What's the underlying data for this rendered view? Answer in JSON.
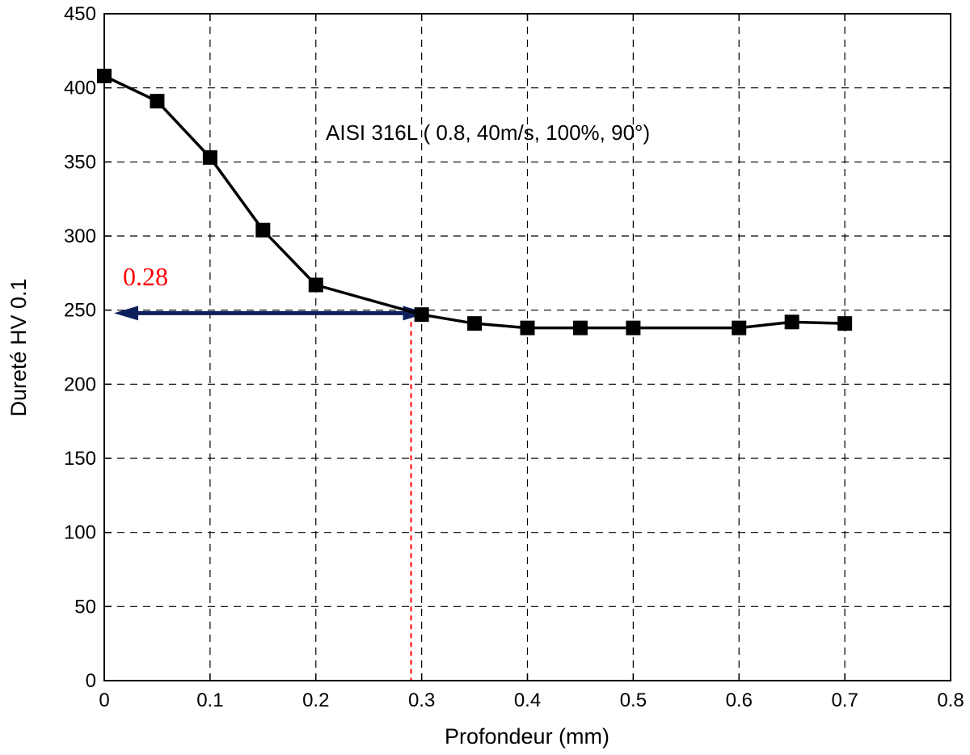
{
  "chart_data": {
    "type": "line",
    "xlabel": "Profondeur (mm)",
    "ylabel": "Dureté HV 0.1",
    "xlim": [
      0,
      0.8
    ],
    "ylim": [
      0,
      450
    ],
    "x_ticks": [
      "0",
      "0.1",
      "0.2",
      "0.3",
      "0.4",
      "0.5",
      "0.6",
      "0.7",
      "0.8"
    ],
    "y_ticks": [
      "0",
      "50",
      "100",
      "150",
      "200",
      "250",
      "300",
      "350",
      "400",
      "450"
    ],
    "grid": true,
    "series": [
      {
        "marker": "square",
        "color": "#000000",
        "x": [
          0,
          0.05,
          0.1,
          0.15,
          0.2,
          0.3,
          0.35,
          0.4,
          0.45,
          0.5,
          0.6,
          0.65,
          0.7
        ],
        "y": [
          408,
          391,
          353,
          304,
          267,
          247,
          241,
          238,
          238,
          238,
          238,
          242,
          241
        ]
      }
    ],
    "annotations": {
      "condition_text": "AISI 316L (  0.8, 40m/s, 100%, 90°)",
      "depth_label": "0.28",
      "depth_label_color": "#ff0000",
      "arrow_color": "#0d1f5c",
      "arrow_y": 248,
      "arrow_x_range": [
        0,
        0.29
      ],
      "vline_x": 0.29,
      "vline_color": "#ff0000"
    }
  }
}
